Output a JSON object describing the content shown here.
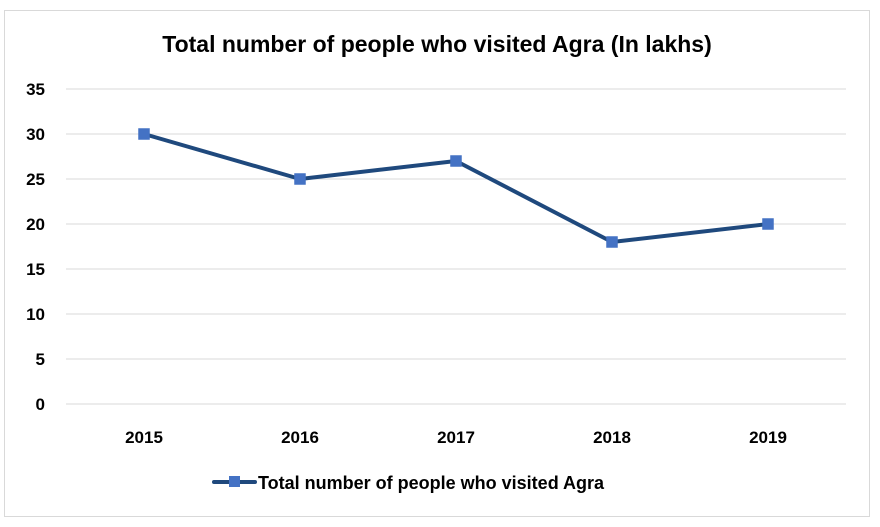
{
  "chart_data": {
    "type": "line",
    "title": "Total number of people who visited Agra (In lakhs)",
    "xlabel": "",
    "ylabel": "",
    "categories": [
      "2015",
      "2016",
      "2017",
      "2018",
      "2019"
    ],
    "series": [
      {
        "name": "Total number of people who visited Agra",
        "values": [
          30,
          25,
          27,
          18,
          20
        ],
        "line_color": "#1f497d",
        "marker_color": "#4472c4",
        "marker": "square"
      }
    ],
    "ylim": [
      0,
      35
    ],
    "yticks": [
      0,
      5,
      10,
      15,
      20,
      25,
      30,
      35
    ],
    "grid": true,
    "gridline_color": "#d9d9d9",
    "legend_position": "bottom"
  }
}
